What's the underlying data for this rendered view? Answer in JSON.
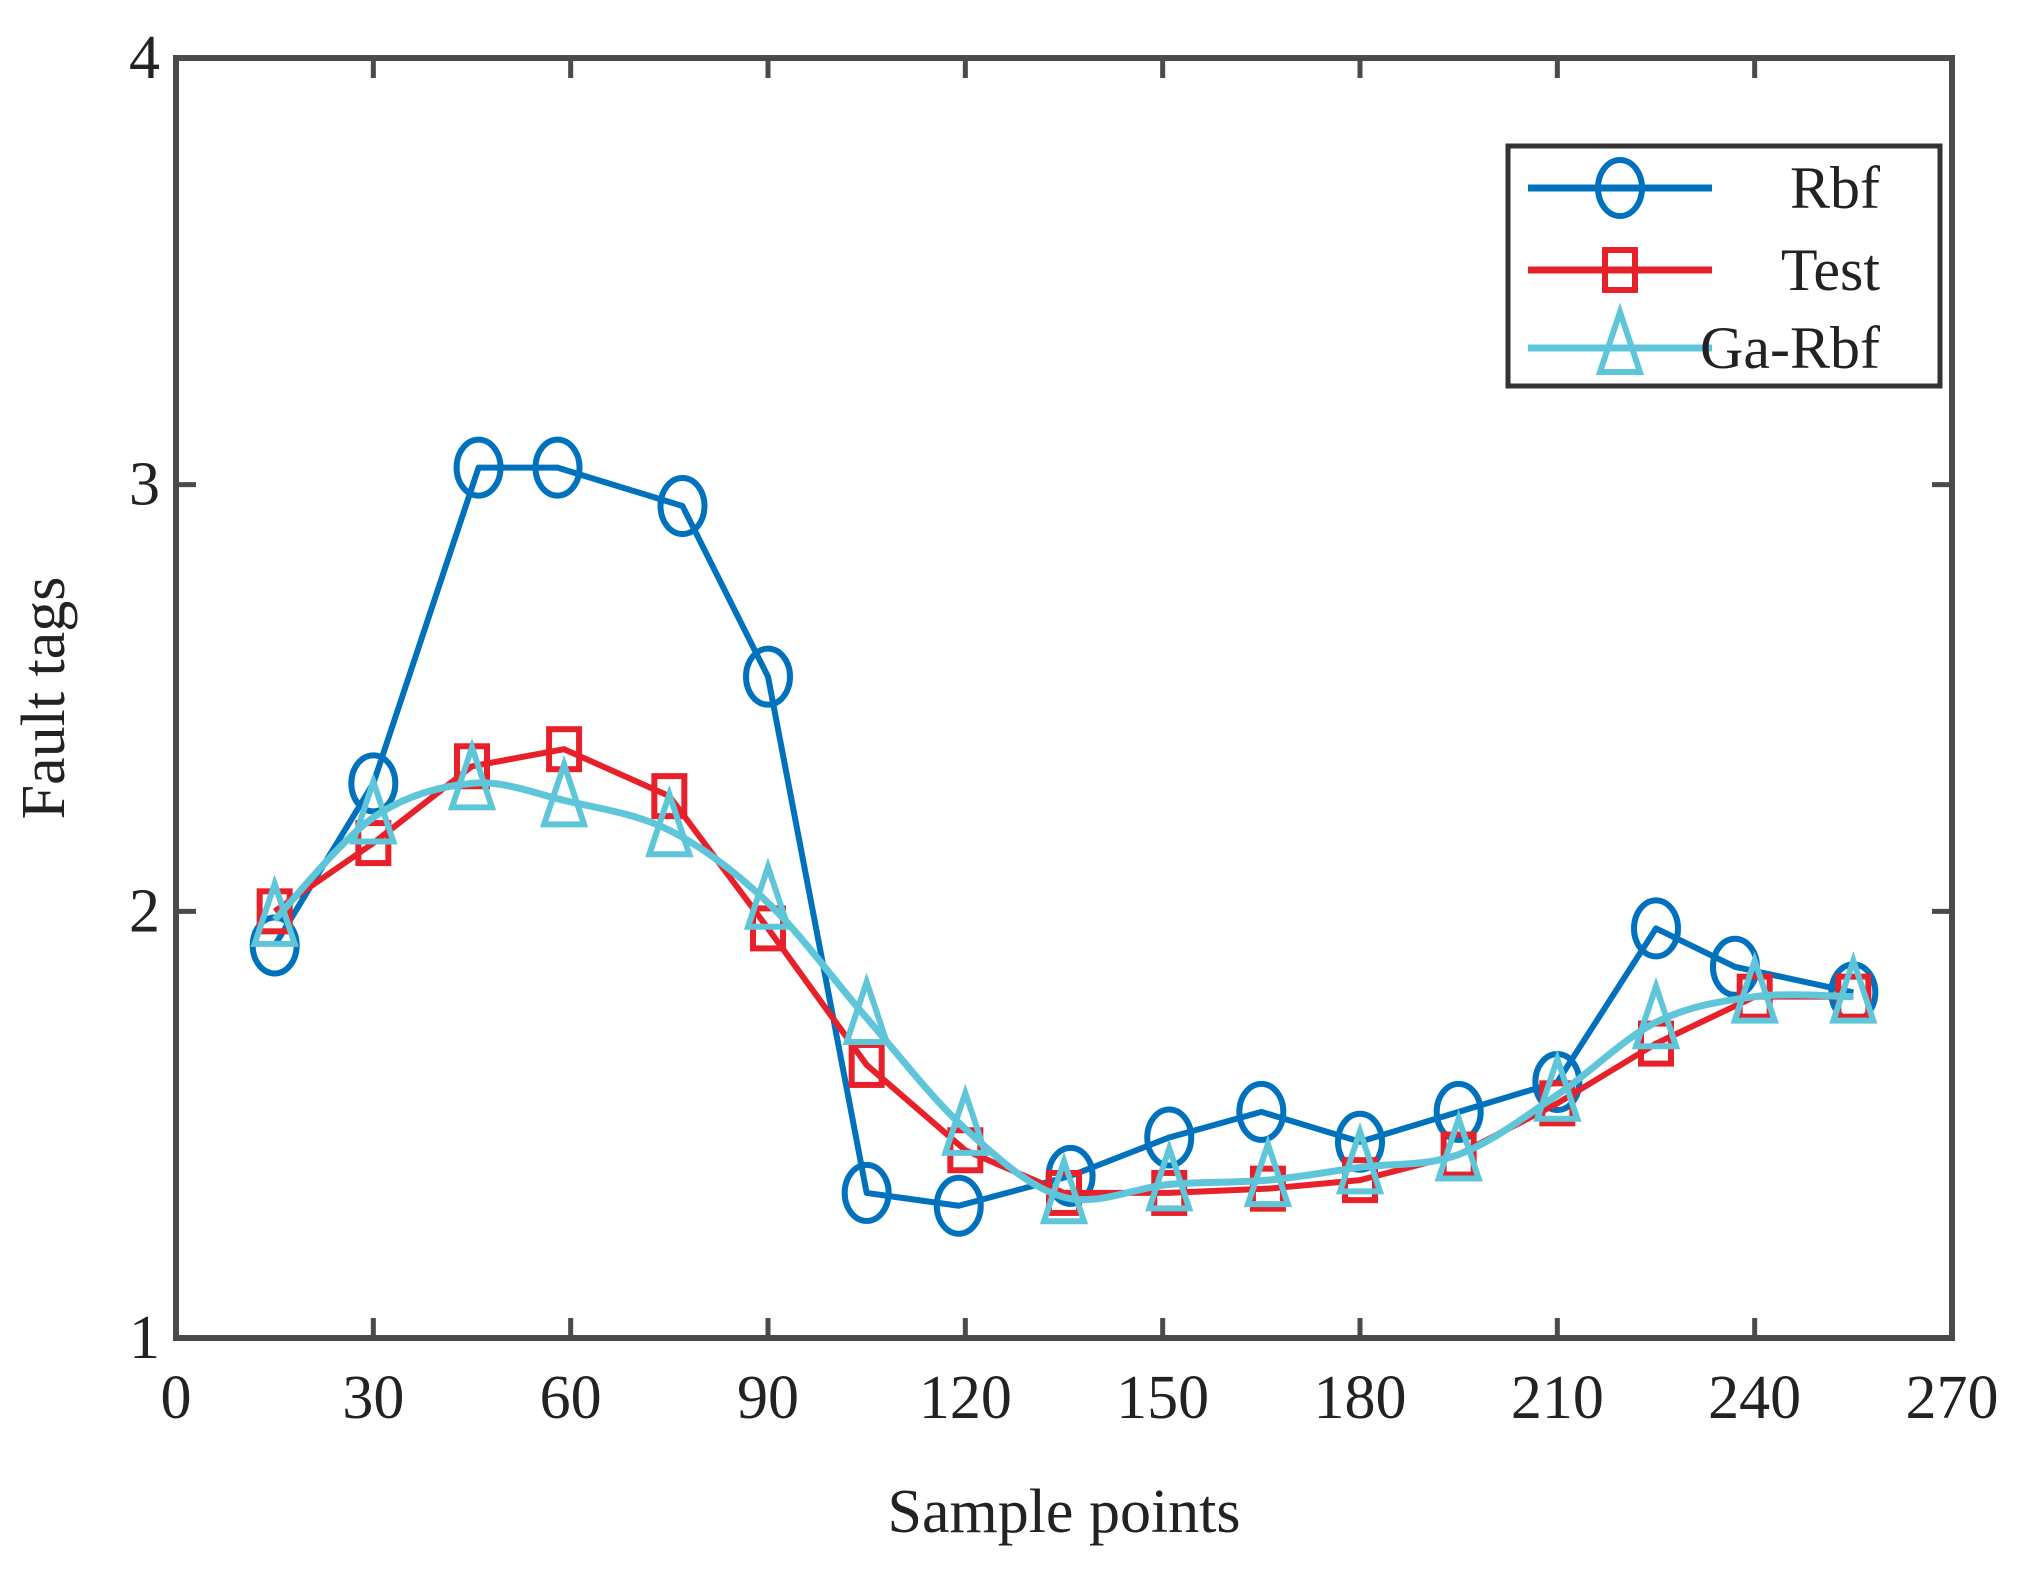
{
  "chart_data": {
    "type": "line",
    "title": "",
    "xlabel": "Sample points",
    "ylabel": "Fault tags",
    "xlim": [
      0,
      270
    ],
    "ylim": [
      1,
      4
    ],
    "xticks": [
      0,
      30,
      60,
      90,
      120,
      150,
      180,
      210,
      240,
      270
    ],
    "yticks": [
      1,
      2,
      3,
      4
    ],
    "xtick_labels": [
      "0",
      "30",
      "60",
      "90",
      "120",
      "150",
      "180",
      "210",
      "240",
      "270"
    ],
    "ytick_labels": [
      "1",
      "2",
      "3",
      "4"
    ],
    "grid": false,
    "legend_position": "top-right",
    "series": [
      {
        "name": "Rbf",
        "color": "#0072BD",
        "marker": "circle",
        "smooth": false,
        "x": [
          15,
          30,
          46,
          58,
          77,
          90,
          105,
          119,
          136,
          151,
          165,
          180,
          195,
          210,
          225,
          237,
          255
        ],
        "y": [
          1.92,
          2.3,
          3.04,
          3.04,
          2.95,
          2.55,
          1.34,
          1.31,
          1.38,
          1.47,
          1.53,
          1.46,
          1.53,
          1.6,
          1.96,
          1.87,
          1.81
        ]
      },
      {
        "name": "Test",
        "color": "#E8202A",
        "marker": "square",
        "smooth": false,
        "x": [
          15,
          30,
          45,
          59,
          75,
          90,
          105,
          120,
          135,
          151,
          166,
          180,
          195,
          210,
          225,
          240,
          255
        ],
        "y": [
          2.0,
          2.16,
          2.34,
          2.38,
          2.27,
          1.96,
          1.64,
          1.44,
          1.34,
          1.34,
          1.35,
          1.37,
          1.43,
          1.55,
          1.69,
          1.8,
          1.8
        ]
      },
      {
        "name": "Ga-Rbf",
        "color": "#5FC6DA",
        "marker": "triangle",
        "smooth": true,
        "x": [
          15,
          30,
          45,
          59,
          75,
          90,
          105,
          120,
          135,
          151,
          166,
          180,
          195,
          210,
          225,
          240,
          255
        ],
        "y": [
          1.98,
          2.22,
          2.3,
          2.26,
          2.19,
          2.02,
          1.75,
          1.49,
          1.33,
          1.36,
          1.37,
          1.4,
          1.43,
          1.57,
          1.74,
          1.8,
          1.8
        ]
      }
    ]
  }
}
